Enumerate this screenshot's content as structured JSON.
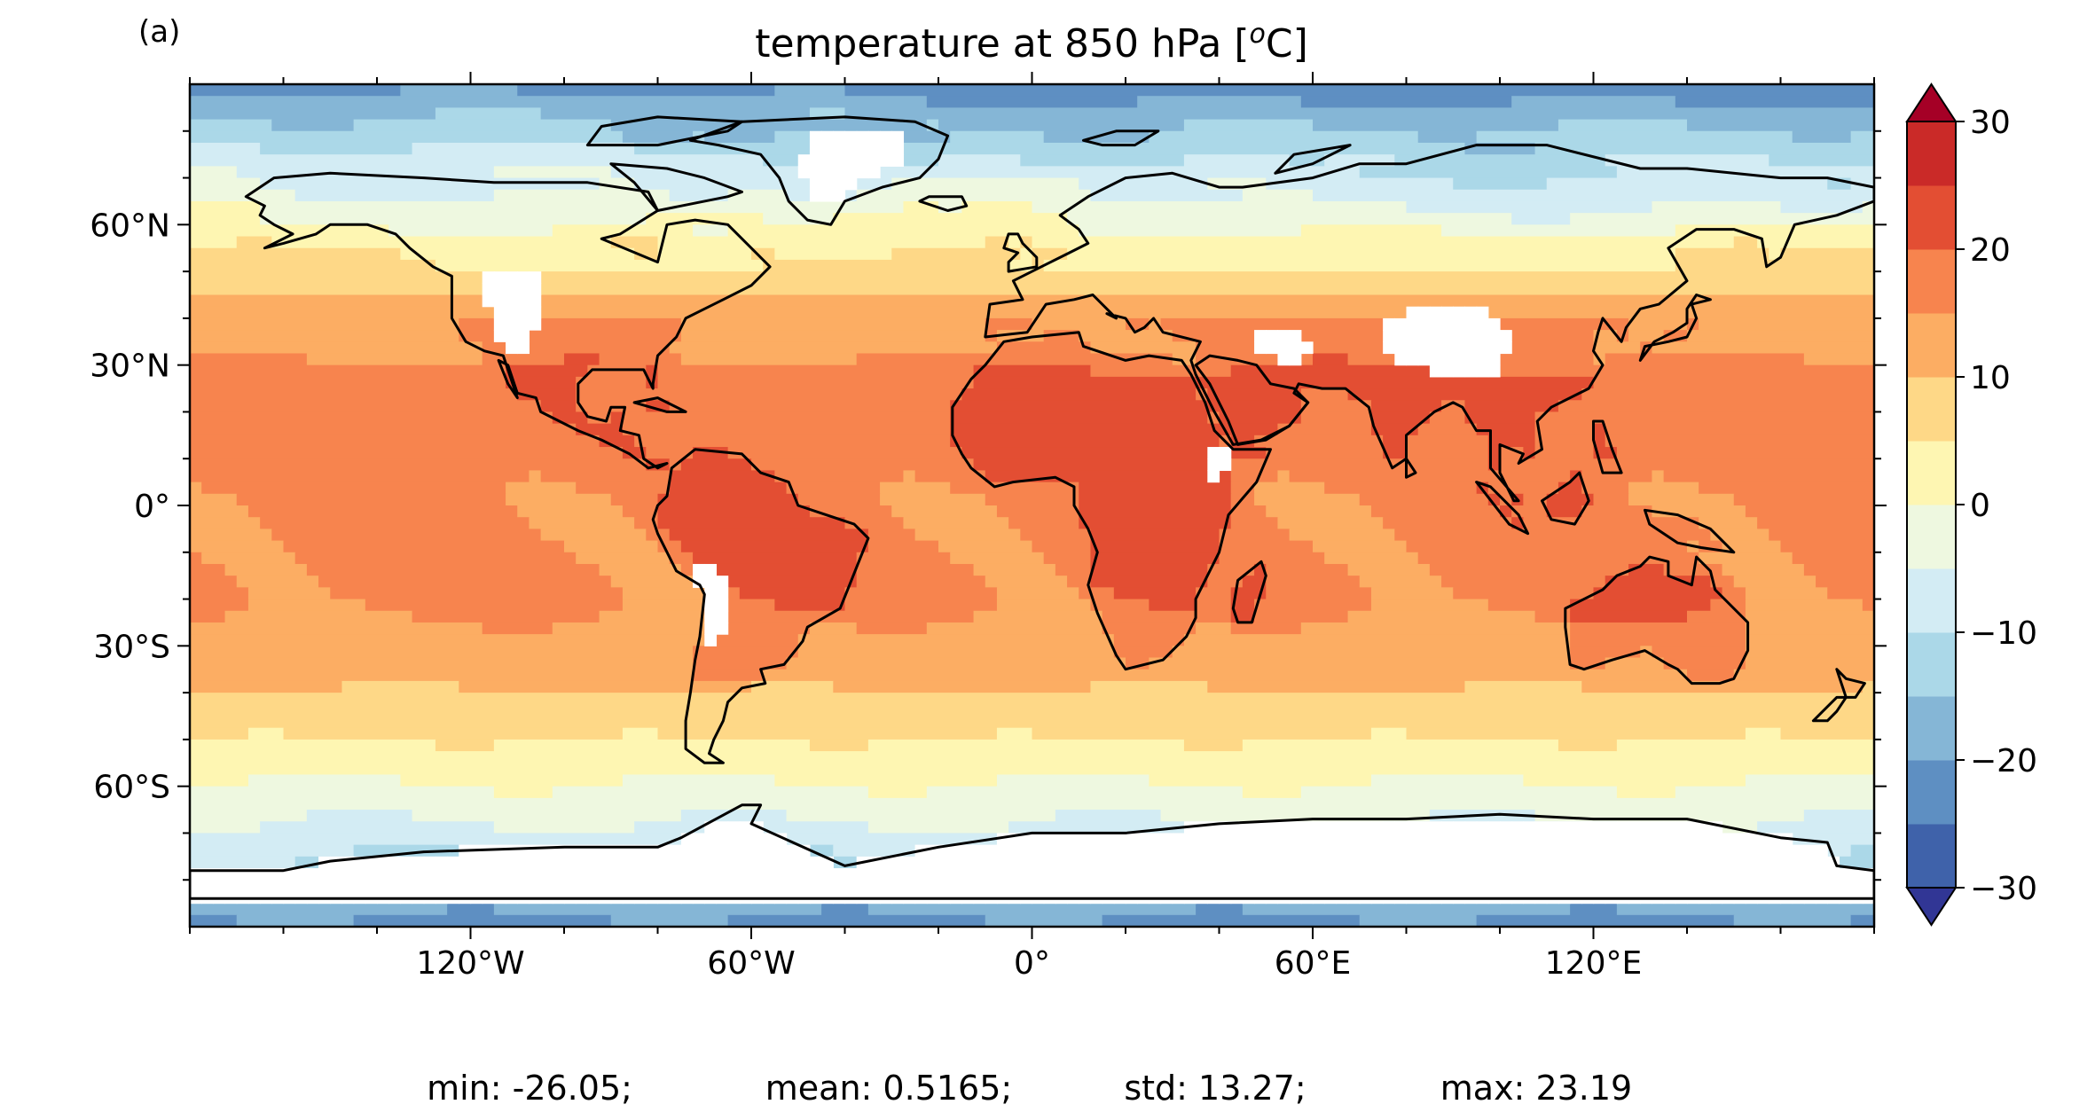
{
  "panel_label": "(a)",
  "title_prefix": "temperature at 850 hPa [",
  "title_sup": "o",
  "title_suffix": "C]",
  "map": {
    "projection": "equirectangular",
    "extent_lon": [
      -180,
      180
    ],
    "extent_lat": [
      -90,
      90
    ],
    "coastlines": true,
    "lat_ticks": [
      {
        "value": 60,
        "label": "60°N"
      },
      {
        "value": 30,
        "label": "30°N"
      },
      {
        "value": 0,
        "label": "0°"
      },
      {
        "value": -30,
        "label": "30°S"
      },
      {
        "value": -60,
        "label": "60°S"
      }
    ],
    "lon_ticks": [
      {
        "value": -120,
        "label": "120°W"
      },
      {
        "value": -60,
        "label": "60°W"
      },
      {
        "value": 0,
        "label": "0°"
      },
      {
        "value": 60,
        "label": "60°E"
      },
      {
        "value": 120,
        "label": "120°E"
      }
    ]
  },
  "colorbar": {
    "vmin": -30,
    "vmax": 30,
    "step": 5,
    "extend": "both",
    "ticks": [
      {
        "value": 30,
        "label": "30"
      },
      {
        "value": 20,
        "label": "20"
      },
      {
        "value": 10,
        "label": "10"
      },
      {
        "value": 0,
        "label": "0"
      },
      {
        "value": -10,
        "label": "−10"
      },
      {
        "value": -20,
        "label": "−20"
      },
      {
        "value": -30,
        "label": "−30"
      }
    ],
    "colors": [
      "#313695",
      "#3f62aa",
      "#5e8fc2",
      "#85b6d6",
      "#abd8e8",
      "#d3ecf4",
      "#eef8e0",
      "#fef6b2",
      "#fed887",
      "#fcad63",
      "#f7844e",
      "#e34e33",
      "#ca2a28",
      "#a50026"
    ],
    "over_color": "#a50026",
    "under_color": "#313695"
  },
  "stats": {
    "min": "min: -26.05;",
    "mean": "mean: 0.5165;",
    "std": "std: 13.27;",
    "max": "max: 23.19"
  }
}
